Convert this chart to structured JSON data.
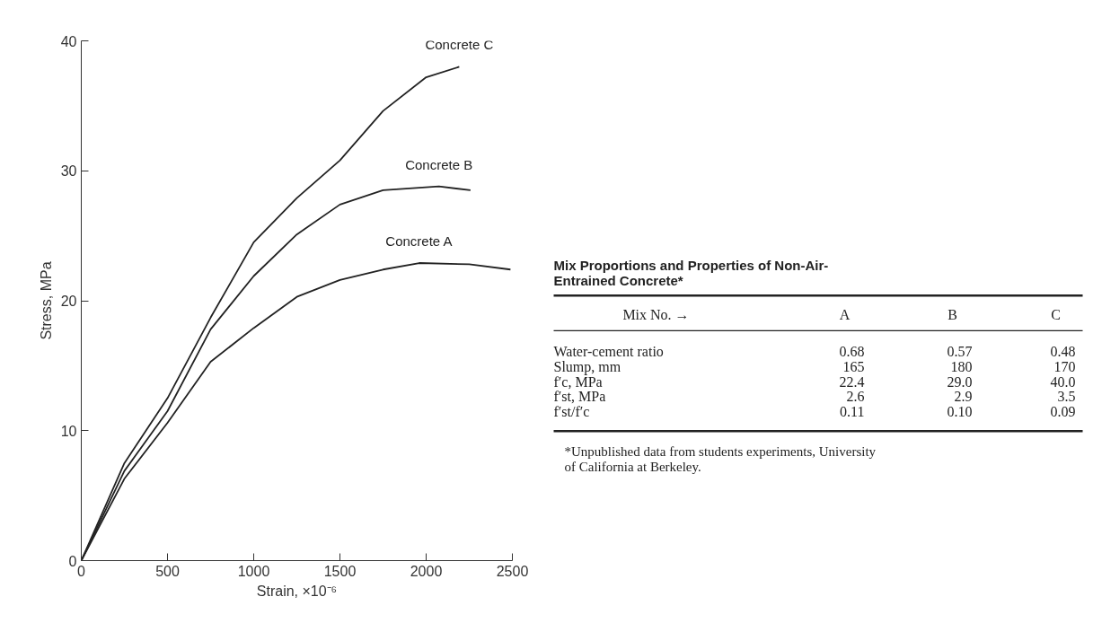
{
  "chart_data": [
    {
      "type": "line",
      "xlabel": "Strain, ×10⁻⁶",
      "ylabel": "Stress, MPa",
      "xlim": [
        0,
        2500
      ],
      "ylim": [
        0,
        40
      ],
      "xticks": [
        0,
        500,
        1000,
        1500,
        2000,
        2500
      ],
      "yticks": [
        0,
        10,
        20,
        30,
        40
      ],
      "grid": false,
      "marker": "none",
      "line_style": "solid",
      "series": [
        {
          "name": "Concrete A",
          "color": "#222222",
          "x": [
            0,
            250,
            500,
            750,
            1000,
            1250,
            1500,
            1750,
            1960,
            2250,
            2489
          ],
          "values": [
            0,
            6.3,
            10.6,
            15.3,
            17.9,
            20.3,
            21.6,
            22.4,
            22.9,
            22.8,
            22.4
          ]
        },
        {
          "name": "Concrete B",
          "color": "#222222",
          "x": [
            0,
            250,
            500,
            750,
            1000,
            1250,
            1500,
            1750,
            2074,
            2257
          ],
          "values": [
            0,
            6.9,
            11.5,
            17.8,
            21.9,
            25.1,
            27.4,
            28.5,
            28.8,
            28.5
          ]
        },
        {
          "name": "Concrete C",
          "color": "#222222",
          "x": [
            0,
            250,
            500,
            750,
            1000,
            1250,
            1500,
            1750,
            2000,
            2192
          ],
          "values": [
            0,
            7.5,
            12.5,
            18.7,
            24.5,
            27.9,
            30.8,
            34.6,
            37.2,
            38.0
          ]
        }
      ]
    },
    {
      "type": "other",
      "title": "Mix Proportions and Properties of Non-Air-Entrained Concrete*",
      "xlabel": "Mix No. →",
      "categories": [
        "A",
        "B",
        "C"
      ],
      "y_categories": [
        "Water-cement ratio",
        "Slump, mm",
        "f′c, MPa",
        "f′st, MPa",
        "f′st/f′c"
      ],
      "cell_labels": [
        [
          "0.68",
          "0.57",
          "0.48"
        ],
        [
          "165",
          "180",
          "170"
        ],
        [
          "22.4",
          "29.0",
          "40.0"
        ],
        [
          "2.6",
          "2.9",
          "3.5"
        ],
        [
          "0.11",
          "0.10",
          "0.09"
        ]
      ],
      "annotations": [
        "*Unpublished data from students experiments, University of California at Berkeley."
      ]
    }
  ]
}
